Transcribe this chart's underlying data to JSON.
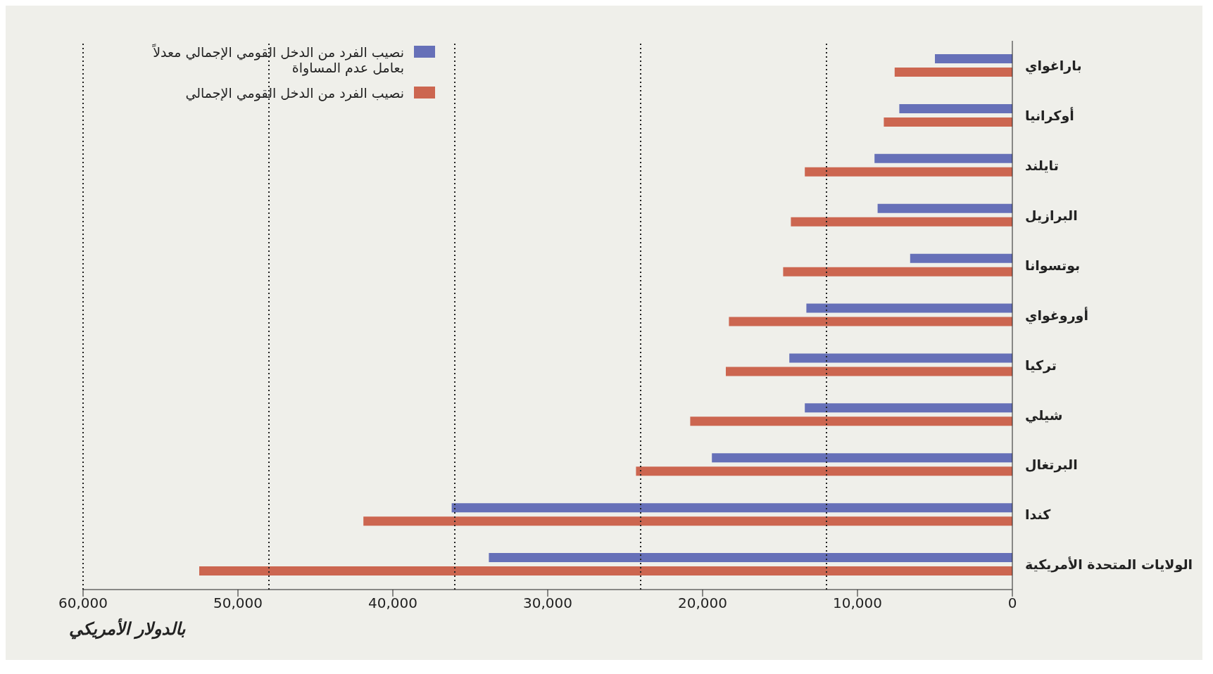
{
  "chart_data": {
    "type": "bar",
    "orientation": "horizontal",
    "xlabel": "بالدولار الأمريكي",
    "categories": [
      "باراغواي",
      "أوكرانيا",
      "تايلند",
      "البرازيل",
      "بوتسوانا",
      "أوروغواي",
      "تركيا",
      "شيلي",
      "البرتغال",
      "كندا",
      "الولايات المتحدة الأمريكية"
    ],
    "series": [
      {
        "name": "نصيب الفرد من الدخل القومي الإجمالي معدلاً بعامل عدم المساواة",
        "color": "#6670b8",
        "values": [
          5000,
          7300,
          8900,
          8700,
          6600,
          13300,
          14400,
          13400,
          19400,
          36200,
          33800
        ]
      },
      {
        "name": "نصيب الفرد من الدخل القومي الإجمالي",
        "color": "#cc6650",
        "values": [
          7600,
          8300,
          13400,
          14300,
          14800,
          18300,
          18500,
          20800,
          24300,
          41900,
          52500
        ]
      }
    ],
    "xlim": [
      60000,
      0
    ],
    "xticks": [
      {
        "value": 60000,
        "label": "60,000"
      },
      {
        "value": 50000,
        "label": "50,000"
      },
      {
        "value": 40000,
        "label": "40,000"
      },
      {
        "value": 30000,
        "label": "30,000"
      },
      {
        "value": 20000,
        "label": "20,000"
      },
      {
        "value": 10000,
        "label": "10,000"
      },
      0
    ],
    "ref_lines": [
      {
        "axis": "x",
        "value": 12000,
        "line_style": "dotted"
      },
      {
        "axis": "x",
        "value": 24000,
        "line_style": "dotted"
      },
      {
        "axis": "x",
        "value": 36000,
        "line_style": "dotted"
      },
      {
        "axis": "x",
        "value": 48000,
        "line_style": "dotted"
      },
      {
        "axis": "x",
        "value": 60000,
        "line_style": "dotted"
      }
    ],
    "grid": false,
    "legend": "top left"
  }
}
